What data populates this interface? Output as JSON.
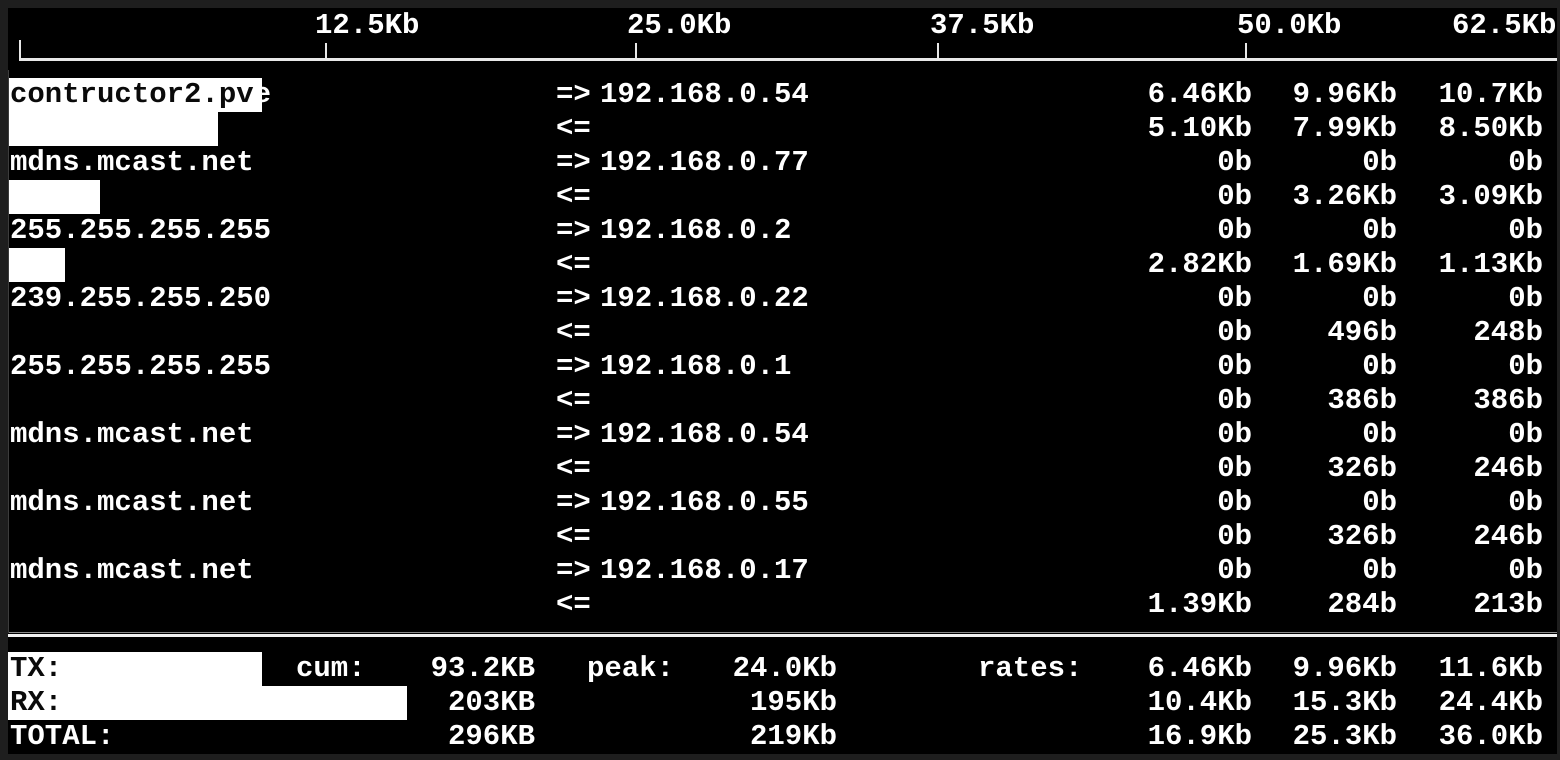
{
  "colors": {
    "background": "#000000",
    "window_edge": "#1e1e1e",
    "text": "#ffffff",
    "redaction_box": "#ffffff",
    "redacted_text": "#0a0a0a"
  },
  "arrows": {
    "tx": "=>",
    "rx": "<="
  },
  "scale": {
    "labels": [
      "12.5Kb",
      "25.0Kb",
      "37.5Kb",
      "50.0Kb",
      "62.5Kb"
    ]
  },
  "connections": [
    {
      "source": "contructor2.pve",
      "source_redacted": "contructor2.pv",
      "source_visible": "e",
      "dest": "192.168.0.54",
      "tx": [
        "6.46Kb",
        "9.96Kb",
        "10.7Kb"
      ],
      "rx": [
        "5.10Kb",
        "7.99Kb",
        "8.50Kb"
      ]
    },
    {
      "source": "mdns.mcast.net",
      "dest": "192.168.0.77",
      "tx": [
        "0b",
        "0b",
        "0b"
      ],
      "rx": [
        "0b",
        "3.26Kb",
        "3.09Kb"
      ]
    },
    {
      "source": "255.255.255.255",
      "dest": "192.168.0.2",
      "tx": [
        "0b",
        "0b",
        "0b"
      ],
      "rx": [
        "2.82Kb",
        "1.69Kb",
        "1.13Kb"
      ]
    },
    {
      "source": "239.255.255.250",
      "dest": "192.168.0.22",
      "tx": [
        "0b",
        "0b",
        "0b"
      ],
      "rx": [
        "0b",
        "496b",
        "248b"
      ]
    },
    {
      "source": "255.255.255.255",
      "dest": "192.168.0.1",
      "tx": [
        "0b",
        "0b",
        "0b"
      ],
      "rx": [
        "0b",
        "386b",
        "386b"
      ]
    },
    {
      "source": "mdns.mcast.net",
      "dest": "192.168.0.54",
      "tx": [
        "0b",
        "0b",
        "0b"
      ],
      "rx": [
        "0b",
        "326b",
        "246b"
      ]
    },
    {
      "source": "mdns.mcast.net",
      "dest": "192.168.0.55",
      "tx": [
        "0b",
        "0b",
        "0b"
      ],
      "rx": [
        "0b",
        "326b",
        "246b"
      ]
    },
    {
      "source": "mdns.mcast.net",
      "dest": "192.168.0.17",
      "tx": [
        "0b",
        "0b",
        "0b"
      ],
      "rx": [
        "1.39Kb",
        "284b",
        "213b"
      ]
    }
  ],
  "footer": {
    "cum_label": "cum:",
    "peak_label": "peak:",
    "rates_label": "rates:",
    "rows": [
      {
        "label": "TX:",
        "cum": "93.2KB",
        "peak": "24.0Kb",
        "rates": [
          "6.46Kb",
          "9.96Kb",
          "11.6Kb"
        ]
      },
      {
        "label": "RX:",
        "cum": "203KB",
        "peak": "195Kb",
        "rates": [
          "10.4Kb",
          "15.3Kb",
          "24.4Kb"
        ]
      },
      {
        "label": "TOTAL:",
        "cum": "296KB",
        "peak": "219Kb",
        "rates": [
          "16.9Kb",
          "25.3Kb",
          "36.0Kb"
        ]
      }
    ]
  }
}
